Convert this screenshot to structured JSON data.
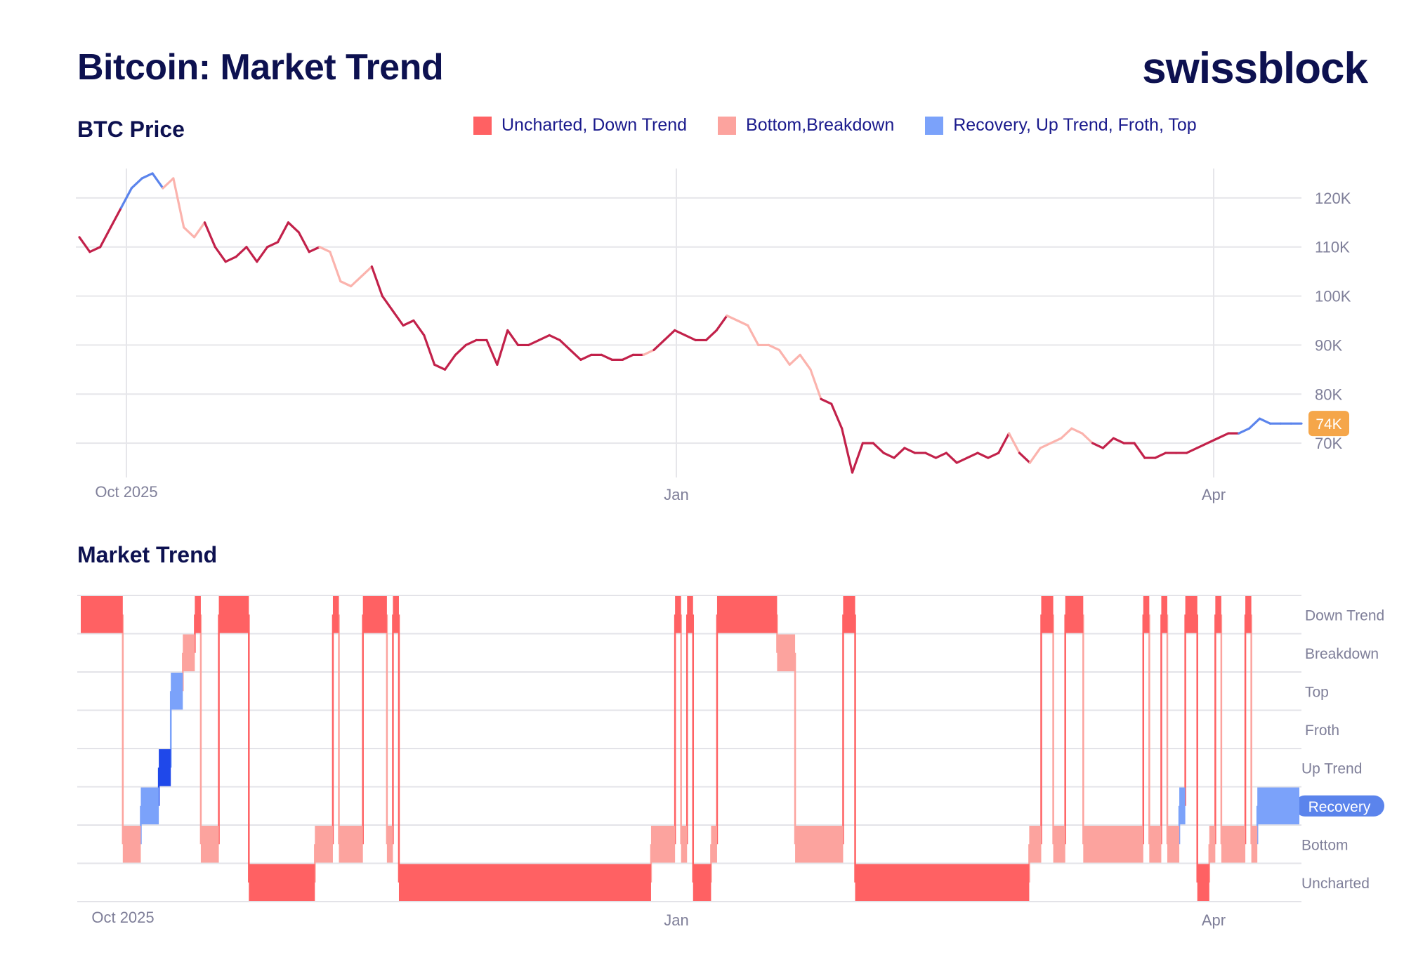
{
  "header": {
    "title": "Bitcoin: Market Trend",
    "logo": "swissblock"
  },
  "price_panel": {
    "title": "BTC Price"
  },
  "trend_panel": {
    "title": "Market Trend"
  },
  "legend": [
    {
      "label": "Uncharted, Down Trend",
      "color": "#ff6163"
    },
    {
      "label": "Bottom,Breakdown",
      "color": "#fca39e"
    },
    {
      "label": "Recovery, Up Trend, Froth, Top",
      "color": "#7ba2fa"
    }
  ],
  "colors": {
    "dark_red": "#c2214a",
    "light_red": "#fbb3ad",
    "blue": "#5b84ec",
    "strong_blue": "#1f48ea",
    "badge": "#f5a64a",
    "recovery_pill": "#5b84ec"
  },
  "chart_data": [
    {
      "type": "line",
      "title": "BTC Price",
      "x_ticks": [
        "Oct 2025",
        "Jan",
        "Apr"
      ],
      "y_ticks": [
        "120K",
        "110K",
        "100K",
        "90K",
        "80K",
        "70K"
      ],
      "y_tick_values": [
        120000,
        110000,
        100000,
        90000,
        80000,
        70000
      ],
      "ylim": [
        63000,
        126000
      ],
      "last_value_label": "74K",
      "series": [
        {
          "name": "BTC",
          "x": [
            0,
            2,
            4,
            6,
            8,
            10,
            12,
            14,
            16,
            18,
            20,
            22,
            24,
            26,
            28,
            30,
            32,
            34,
            36,
            38,
            40,
            42,
            44,
            46,
            48,
            50,
            52,
            54,
            56,
            58,
            60,
            62,
            64,
            66,
            68,
            70,
            72,
            74,
            76,
            78,
            80,
            82,
            84,
            86,
            88,
            90,
            92,
            94,
            96,
            98,
            100,
            102,
            104,
            106,
            108,
            110,
            112,
            114,
            116,
            118,
            120,
            122,
            124,
            126,
            128,
            130,
            132,
            134,
            136,
            138,
            140,
            142,
            144,
            146,
            148,
            150,
            152,
            154,
            156,
            158,
            160,
            162,
            164,
            166,
            168,
            170,
            172,
            174,
            176,
            178,
            180,
            182,
            184,
            186,
            188,
            190,
            192,
            194,
            196,
            198,
            200,
            202,
            204,
            206,
            208,
            210,
            212,
            214,
            216,
            218,
            220,
            222,
            224,
            226,
            228,
            230,
            232,
            234
          ],
          "y": [
            112000,
            109000,
            110000,
            114000,
            118000,
            122000,
            124000,
            125000,
            122000,
            124000,
            114000,
            112000,
            115000,
            110000,
            107000,
            108000,
            110000,
            107000,
            110000,
            111000,
            115000,
            113000,
            109000,
            110000,
            109000,
            103000,
            102000,
            104000,
            106000,
            100000,
            97000,
            94000,
            95000,
            92000,
            86000,
            85000,
            88000,
            90000,
            91000,
            91000,
            86000,
            93000,
            90000,
            90000,
            91000,
            92000,
            91000,
            89000,
            87000,
            88000,
            88000,
            87000,
            87000,
            88000,
            88000,
            89000,
            91000,
            93000,
            92000,
            91000,
            91000,
            93000,
            96000,
            95000,
            94000,
            90000,
            90000,
            89000,
            86000,
            88000,
            85000,
            79000,
            78000,
            73000,
            64000,
            70000,
            70000,
            68000,
            67000,
            69000,
            68000,
            68000,
            67000,
            68000,
            66000,
            67000,
            68000,
            67000,
            68000,
            72000,
            68000,
            66000,
            69000,
            70000,
            71000,
            73000,
            72000,
            70000,
            69000,
            71000,
            70000,
            70000,
            67000,
            67000,
            68000,
            68000,
            68000,
            69000,
            70000,
            71000,
            72000,
            72000,
            73000,
            75000,
            74000,
            74000,
            74000,
            74000
          ],
          "segment_regimes": [
            "D",
            "D",
            "D",
            "D",
            "U",
            "U",
            "U",
            "U",
            "B",
            "B",
            "B",
            "B",
            "D",
            "D",
            "D",
            "D",
            "D",
            "D",
            "D",
            "D",
            "D",
            "D",
            "D",
            "B",
            "B",
            "B",
            "B",
            "B",
            "D",
            "D",
            "D",
            "D",
            "D",
            "D",
            "D",
            "D",
            "D",
            "D",
            "D",
            "D",
            "D",
            "D",
            "D",
            "D",
            "D",
            "D",
            "D",
            "D",
            "D",
            "D",
            "D",
            "D",
            "D",
            "D",
            "B",
            "D",
            "D",
            "D",
            "D",
            "D",
            "D",
            "D",
            "B",
            "B",
            "B",
            "B",
            "B",
            "B",
            "B",
            "B",
            "B",
            "D",
            "D",
            "D",
            "D",
            "D",
            "D",
            "D",
            "D",
            "D",
            "D",
            "D",
            "D",
            "D",
            "D",
            "D",
            "D",
            "D",
            "D",
            "B",
            "D",
            "B",
            "B",
            "B",
            "B",
            "B",
            "B",
            "D",
            "D",
            "D",
            "D",
            "D",
            "D",
            "D",
            "D",
            "D",
            "D",
            "D",
            "D",
            "D",
            "D",
            "U",
            "U",
            "U",
            "U",
            "U",
            "U"
          ]
        }
      ]
    },
    {
      "type": "step",
      "title": "Market Trend",
      "x_ticks": [
        "Oct 2025",
        "Jan",
        "Apr"
      ],
      "levels": [
        "Down Trend",
        "Breakdown",
        "Top",
        "Froth",
        "Up Trend",
        "Recovery",
        "Bottom",
        "Uncharted"
      ],
      "current_level": "Recovery",
      "segments": [
        {
          "start": 0,
          "end": 7,
          "level": "Down Trend"
        },
        {
          "start": 7,
          "end": 10,
          "level": "Bottom"
        },
        {
          "start": 10,
          "end": 13,
          "level": "Recovery"
        },
        {
          "start": 13,
          "end": 15,
          "level": "Up Trend"
        },
        {
          "start": 15,
          "end": 17,
          "level": "Top"
        },
        {
          "start": 17,
          "end": 19,
          "level": "Breakdown"
        },
        {
          "start": 19,
          "end": 20,
          "level": "Down Trend"
        },
        {
          "start": 20,
          "end": 23,
          "level": "Bottom"
        },
        {
          "start": 23,
          "end": 28,
          "level": "Down Trend"
        },
        {
          "start": 28,
          "end": 39,
          "level": "Uncharted"
        },
        {
          "start": 39,
          "end": 42,
          "level": "Bottom"
        },
        {
          "start": 42,
          "end": 43,
          "level": "Down Trend"
        },
        {
          "start": 43,
          "end": 47,
          "level": "Bottom"
        },
        {
          "start": 47,
          "end": 51,
          "level": "Down Trend"
        },
        {
          "start": 51,
          "end": 52,
          "level": "Bottom"
        },
        {
          "start": 52,
          "end": 53,
          "level": "Down Trend"
        },
        {
          "start": 53,
          "end": 95,
          "level": "Uncharted"
        },
        {
          "start": 95,
          "end": 99,
          "level": "Bottom"
        },
        {
          "start": 99,
          "end": 100,
          "level": "Down Trend"
        },
        {
          "start": 100,
          "end": 101,
          "level": "Bottom"
        },
        {
          "start": 101,
          "end": 102,
          "level": "Down Trend"
        },
        {
          "start": 102,
          "end": 105,
          "level": "Uncharted"
        },
        {
          "start": 105,
          "end": 106,
          "level": "Bottom"
        },
        {
          "start": 106,
          "end": 116,
          "level": "Down Trend"
        },
        {
          "start": 116,
          "end": 119,
          "level": "Breakdown"
        },
        {
          "start": 119,
          "end": 127,
          "level": "Bottom"
        },
        {
          "start": 127,
          "end": 129,
          "level": "Down Trend"
        },
        {
          "start": 129,
          "end": 158,
          "level": "Uncharted"
        },
        {
          "start": 158,
          "end": 160,
          "level": "Bottom"
        },
        {
          "start": 160,
          "end": 162,
          "level": "Down Trend"
        },
        {
          "start": 162,
          "end": 164,
          "level": "Bottom"
        },
        {
          "start": 164,
          "end": 167,
          "level": "Down Trend"
        },
        {
          "start": 167,
          "end": 177,
          "level": "Bottom"
        },
        {
          "start": 177,
          "end": 178,
          "level": "Down Trend"
        },
        {
          "start": 178,
          "end": 180,
          "level": "Bottom"
        },
        {
          "start": 180,
          "end": 181,
          "level": "Down Trend"
        },
        {
          "start": 181,
          "end": 183,
          "level": "Bottom"
        },
        {
          "start": 183,
          "end": 184,
          "level": "Recovery"
        },
        {
          "start": 184,
          "end": 186,
          "level": "Down Trend"
        },
        {
          "start": 186,
          "end": 188,
          "level": "Uncharted"
        },
        {
          "start": 188,
          "end": 189,
          "level": "Bottom"
        },
        {
          "start": 189,
          "end": 190,
          "level": "Down Trend"
        },
        {
          "start": 190,
          "end": 194,
          "level": "Bottom"
        },
        {
          "start": 194,
          "end": 195,
          "level": "Down Trend"
        },
        {
          "start": 195,
          "end": 196,
          "level": "Bottom"
        },
        {
          "start": 196,
          "end": 203,
          "level": "Recovery"
        }
      ]
    }
  ]
}
